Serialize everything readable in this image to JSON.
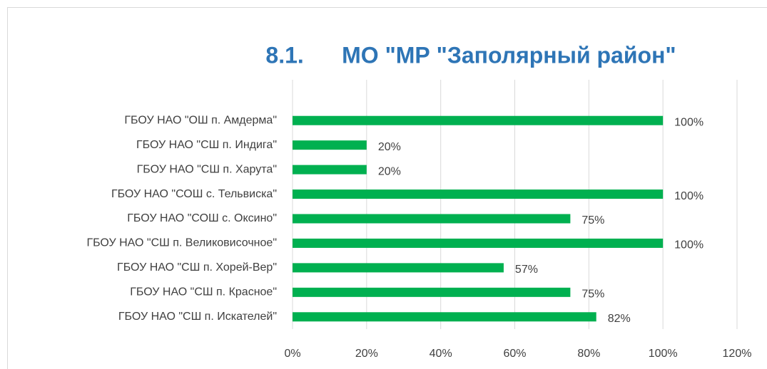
{
  "chart_data": {
    "type": "bar",
    "orientation": "horizontal",
    "title": "8.1.      МО \"МР \"Заполярный район\"",
    "categories": [
      "ГБОУ НАО \"ОШ п. Амдерма\"",
      "ГБОУ НАО \"СШ п. Индига\"",
      "ГБОУ НАО \"СШ п. Харута\"",
      "ГБОУ НАО \"СОШ с. Тельвиска\"",
      "ГБОУ НАО \"СОШ с. Оксино\"",
      "ГБОУ НАО \"СШ п. Великовисочное\"",
      "ГБОУ НАО \"СШ п. Хорей-Вер\"",
      "ГБОУ НАО \"СШ п. Красное\"",
      "ГБОУ НАО \"СШ п. Искателей\""
    ],
    "values": [
      100,
      20,
      20,
      100,
      75,
      100,
      57,
      75,
      82
    ],
    "value_labels": [
      "100%",
      "20%",
      "20%",
      "100%",
      "75%",
      "100%",
      "57%",
      "75%",
      "82%"
    ],
    "color": "#00b050",
    "xlim": [
      0,
      120
    ],
    "xticks": [
      {
        "value": 0,
        "label": "0%"
      },
      {
        "value": 20,
        "label": "20%"
      },
      {
        "value": 40,
        "label": "40%"
      },
      {
        "value": 60,
        "label": "60%"
      },
      {
        "value": 80,
        "label": "80%"
      },
      {
        "value": 100,
        "label": "100%"
      },
      {
        "value": 120,
        "label": "120%"
      }
    ],
    "grid": true
  }
}
